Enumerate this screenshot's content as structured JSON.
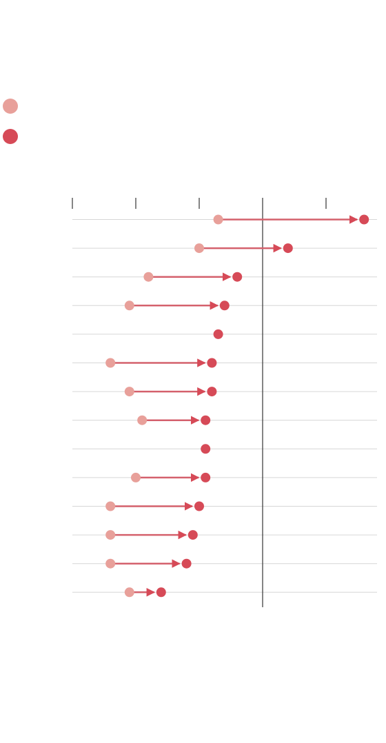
{
  "legend": {
    "items": [
      {
        "color": "#e8a09a"
      },
      {
        "color": "#d64a57"
      }
    ]
  },
  "colors": {
    "start": "#e8a09a",
    "end": "#d64a57",
    "arrow": "#d4606c",
    "grid": "#d6d6d6",
    "reference": "#333333",
    "tick": "#333333"
  },
  "chart_data": {
    "type": "dot-arrow",
    "xlim": [
      0,
      4.8
    ],
    "x_ticks": [
      0,
      1,
      2,
      3,
      4
    ],
    "reference_x": 3,
    "grid": true,
    "rows": [
      {
        "start": 2.3,
        "end": 4.6
      },
      {
        "start": 2.0,
        "end": 3.4
      },
      {
        "start": 1.2,
        "end": 2.6
      },
      {
        "start": 0.9,
        "end": 2.4
      },
      {
        "start": 2.3,
        "end": 2.3
      },
      {
        "start": 0.6,
        "end": 2.2
      },
      {
        "start": 0.9,
        "end": 2.2
      },
      {
        "start": 1.1,
        "end": 2.1
      },
      {
        "start": 2.1,
        "end": 2.1
      },
      {
        "start": 1.0,
        "end": 2.1
      },
      {
        "start": 0.6,
        "end": 2.0
      },
      {
        "start": 0.6,
        "end": 1.9
      },
      {
        "start": 0.6,
        "end": 1.8
      },
      {
        "start": 0.9,
        "end": 1.4
      }
    ]
  }
}
